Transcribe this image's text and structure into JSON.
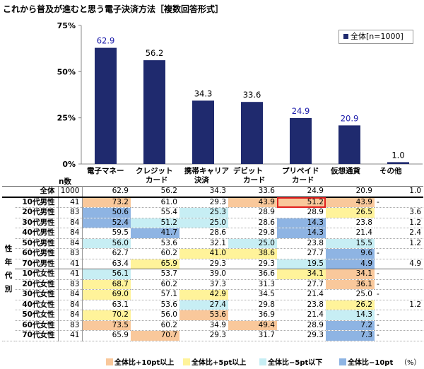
{
  "title": "これから普及が進むと思う電子決済方法［複数回答形式］",
  "legend_label": "全体[n=1000]",
  "n_header": "n数",
  "group_label": [
    "性",
    "年",
    "代",
    "別"
  ],
  "chart_data": {
    "type": "bar",
    "title": "これから普及が進むと思う電子決済方法［複数回答形式］",
    "series_name": "全体[n=1000]",
    "categories": [
      {
        "line1": "電子マネー",
        "line2": ""
      },
      {
        "line1": "クレジット",
        "line2": "カード"
      },
      {
        "line1": "携帯キャリア",
        "line2": "決済"
      },
      {
        "line1": "デビット",
        "line2": "カード"
      },
      {
        "line1": "プリペイド",
        "line2": "カード"
      },
      {
        "line1": "仮想通貨",
        "line2": ""
      },
      {
        "line1": "その他",
        "line2": ""
      }
    ],
    "values": [
      62.9,
      56.2,
      34.3,
      33.6,
      24.9,
      20.9,
      1.0
    ],
    "value_colors": [
      "#1a1aaa",
      "#000000",
      "#000000",
      "#000000",
      "#1a1aaa",
      "#1a1aaa",
      "#000000"
    ],
    "bar_color": "#1f2a6e",
    "ylim": [
      0,
      75
    ],
    "yticks": [
      "0%",
      "25%",
      "50%",
      "75%"
    ],
    "ytick_values": [
      0,
      25,
      50,
      75
    ]
  },
  "table_rows": [
    {
      "label": "全体",
      "n": "1000",
      "vals": [
        "62.9",
        "56.2",
        "34.3",
        "33.6",
        "24.9",
        "20.9",
        "1.0"
      ],
      "hl": [
        "",
        "",
        "",
        "",
        "",
        "",
        ""
      ]
    },
    {
      "label": "10代男性",
      "n": "41",
      "vals": [
        "73.2",
        "61.0",
        "29.3",
        "43.9",
        "51.2",
        "43.9",
        "-"
      ],
      "hl": [
        "orange",
        "",
        "",
        "orange",
        "orange red",
        "orange",
        ""
      ]
    },
    {
      "label": "20代男性",
      "n": "83",
      "vals": [
        "50.6",
        "55.4",
        "25.3",
        "28.9",
        "28.9",
        "26.5",
        "3.6"
      ],
      "hl": [
        "blue",
        "",
        "lblue",
        "",
        "",
        "yellow",
        ""
      ]
    },
    {
      "label": "30代男性",
      "n": "84",
      "vals": [
        "52.4",
        "51.2",
        "25.0",
        "28.6",
        "14.3",
        "23.8",
        "1.2"
      ],
      "hl": [
        "blue",
        "lblue",
        "lblue",
        "",
        "blue",
        "",
        ""
      ]
    },
    {
      "label": "40代男性",
      "n": "84",
      "vals": [
        "59.5",
        "41.7",
        "28.6",
        "29.8",
        "14.3",
        "21.4",
        "2.4"
      ],
      "hl": [
        "",
        "blue",
        "",
        "",
        "blue",
        "",
        ""
      ]
    },
    {
      "label": "50代男性",
      "n": "84",
      "vals": [
        "56.0",
        "53.6",
        "32.1",
        "25.0",
        "23.8",
        "15.5",
        "1.2"
      ],
      "hl": [
        "lblue",
        "",
        "",
        "lblue",
        "",
        "lblue",
        ""
      ]
    },
    {
      "label": "60代男性",
      "n": "83",
      "vals": [
        "62.7",
        "60.2",
        "41.0",
        "38.6",
        "27.7",
        "9.6",
        "-"
      ],
      "hl": [
        "",
        "",
        "yellow",
        "yellow",
        "",
        "blue",
        ""
      ]
    },
    {
      "label": "70代男性",
      "n": "41",
      "vals": [
        "63.4",
        "65.9",
        "29.3",
        "29.3",
        "19.5",
        "4.9",
        "4.9"
      ],
      "hl": [
        "",
        "yellow",
        "",
        "",
        "lblue",
        "blue",
        ""
      ]
    },
    {
      "label": "10代女性",
      "n": "41",
      "vals": [
        "56.1",
        "53.7",
        "39.0",
        "36.6",
        "34.1",
        "34.1",
        "-"
      ],
      "hl": [
        "lblue",
        "",
        "",
        "",
        "yellow",
        "orange",
        ""
      ]
    },
    {
      "label": "20代女性",
      "n": "83",
      "vals": [
        "68.7",
        "60.2",
        "37.3",
        "31.3",
        "27.7",
        "36.1",
        "-"
      ],
      "hl": [
        "yellow",
        "",
        "",
        "",
        "",
        "orange",
        ""
      ]
    },
    {
      "label": "30代女性",
      "n": "84",
      "vals": [
        "69.0",
        "57.1",
        "42.9",
        "34.5",
        "21.4",
        "25.0",
        "-"
      ],
      "hl": [
        "yellow",
        "",
        "yellow",
        "",
        "",
        "",
        " "
      ]
    },
    {
      "label": "40代女性",
      "n": "84",
      "vals": [
        "63.1",
        "53.6",
        "27.4",
        "29.8",
        "23.8",
        "26.2",
        "1.2"
      ],
      "hl": [
        "",
        "",
        "lblue",
        "",
        "",
        "yellow",
        ""
      ]
    },
    {
      "label": "50代女性",
      "n": "84",
      "vals": [
        "70.2",
        "56.0",
        "53.6",
        "36.9",
        "21.4",
        "14.3",
        "-"
      ],
      "hl": [
        "yellow",
        "",
        "orange",
        "",
        "",
        "lblue",
        ""
      ]
    },
    {
      "label": "60代女性",
      "n": "83",
      "vals": [
        "73.5",
        "60.2",
        "34.9",
        "49.4",
        "28.9",
        "7.2",
        "-"
      ],
      "hl": [
        "orange",
        "",
        "",
        "orange",
        "",
        "blue",
        ""
      ]
    },
    {
      "label": "70代女性",
      "n": "41",
      "vals": [
        "65.9",
        "70.7",
        "29.3",
        "31.7",
        "29.3",
        "7.3",
        "-"
      ],
      "hl": [
        "",
        "orange",
        "",
        "",
        "",
        "blue",
        ""
      ]
    }
  ],
  "bottom_legend": [
    {
      "label": "全体比+10pt以上",
      "color": "#f9c89b"
    },
    {
      "label": "全体比+5pt以上",
      "color": "#fff39a"
    },
    {
      "label": "全体比−5pt以下",
      "color": "#c7eef4"
    },
    {
      "label": "全体比−10pt",
      "color": "#8eb4e3"
    }
  ],
  "unit_label": "（%）"
}
